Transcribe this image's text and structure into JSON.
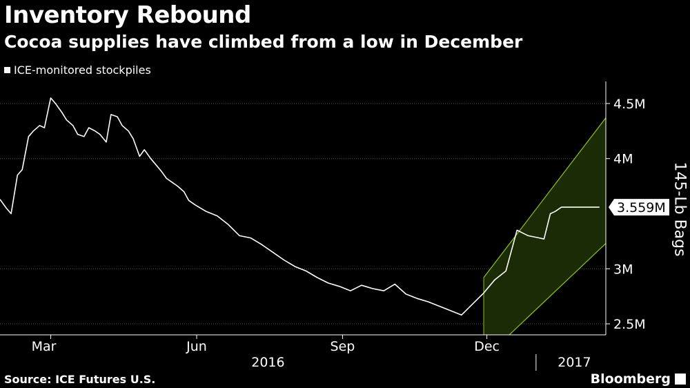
{
  "header": {
    "title": "Inventory Rebound",
    "subtitle": "Cocoa supplies have climbed from a low in December"
  },
  "footer": {
    "source": "Source: ICE Futures U.S.",
    "brand": "Bloomberg"
  },
  "colors": {
    "background": "#000000",
    "line": "#ffffff",
    "channel_fill": "#1a2b06",
    "channel_edge": "#8fc31f"
  },
  "chart_data": {
    "type": "line",
    "title": "Inventory Rebound",
    "subtitle": "Cocoa supplies have climbed from a low in December",
    "ylabel": "145-Lb Bags",
    "ylim": [
      2.4,
      4.7
    ],
    "yticks": [
      "2.5M",
      "3M",
      "4M",
      "4.5M"
    ],
    "yticks_values": [
      2.5,
      3.0,
      4.0,
      4.5
    ],
    "x_month_labels": [
      "Mar",
      "Jun",
      "Sep",
      "Dec"
    ],
    "x_month_dates": [
      "2016-03-01",
      "2016-06-01",
      "2016-09-01",
      "2016-12-01"
    ],
    "year_labels": [
      "2016",
      "2017"
    ],
    "grid": true,
    "legend_position": "top-left",
    "last_value_label": "3.559M",
    "last_value": 3.559,
    "series": [
      {
        "name": "ICE-monitored stockpiles",
        "x": [
          "2016-01-29",
          "2016-02-02",
          "2016-02-05",
          "2016-02-09",
          "2016-02-12",
          "2016-02-16",
          "2016-02-19",
          "2016-02-23",
          "2016-02-26",
          "2016-03-01",
          "2016-03-04",
          "2016-03-08",
          "2016-03-11",
          "2016-03-15",
          "2016-03-18",
          "2016-03-22",
          "2016-03-25",
          "2016-03-29",
          "2016-04-01",
          "2016-04-05",
          "2016-04-08",
          "2016-04-12",
          "2016-04-15",
          "2016-04-19",
          "2016-04-22",
          "2016-04-26",
          "2016-04-29",
          "2016-05-03",
          "2016-05-06",
          "2016-05-10",
          "2016-05-13",
          "2016-05-17",
          "2016-05-20",
          "2016-05-24",
          "2016-05-27",
          "2016-05-31",
          "2016-06-07",
          "2016-06-14",
          "2016-06-21",
          "2016-06-28",
          "2016-07-05",
          "2016-07-12",
          "2016-07-19",
          "2016-07-26",
          "2016-08-02",
          "2016-08-09",
          "2016-08-16",
          "2016-08-23",
          "2016-08-30",
          "2016-09-06",
          "2016-09-13",
          "2016-09-20",
          "2016-09-27",
          "2016-10-04",
          "2016-10-11",
          "2016-10-18",
          "2016-10-25",
          "2016-11-01",
          "2016-11-08",
          "2016-11-15",
          "2016-11-22",
          "2016-11-29",
          "2016-12-06",
          "2016-12-13",
          "2016-12-20",
          "2016-12-27",
          "2017-01-03",
          "2017-01-06",
          "2017-01-10",
          "2017-01-13",
          "2017-01-17",
          "2017-01-20",
          "2017-01-24",
          "2017-01-27",
          "2017-01-31",
          "2017-02-03",
          "2017-02-07",
          "2017-02-10"
        ],
        "values": [
          3.63,
          3.55,
          3.5,
          3.85,
          3.9,
          4.2,
          4.25,
          4.3,
          4.28,
          4.55,
          4.5,
          4.42,
          4.35,
          4.3,
          4.22,
          4.2,
          4.28,
          4.25,
          4.22,
          4.15,
          4.4,
          4.38,
          4.3,
          4.25,
          4.18,
          4.02,
          4.08,
          4.0,
          3.95,
          3.88,
          3.82,
          3.78,
          3.75,
          3.7,
          3.62,
          3.58,
          3.52,
          3.48,
          3.4,
          3.3,
          3.28,
          3.22,
          3.15,
          3.08,
          3.02,
          2.98,
          2.92,
          2.87,
          2.84,
          2.8,
          2.85,
          2.82,
          2.8,
          2.86,
          2.77,
          2.73,
          2.7,
          2.66,
          2.62,
          2.58,
          2.68,
          2.78,
          2.9,
          2.98,
          3.35,
          3.3,
          3.28,
          3.27,
          3.5,
          3.52,
          3.559,
          3.559,
          3.559,
          3.559,
          3.559,
          3.559,
          3.559,
          3.559
        ]
      }
    ],
    "channel": {
      "x": [
        "2016-11-29",
        "2017-02-14"
      ],
      "upper": [
        2.92,
        4.37
      ],
      "lower": [
        2.18,
        3.23
      ]
    }
  }
}
